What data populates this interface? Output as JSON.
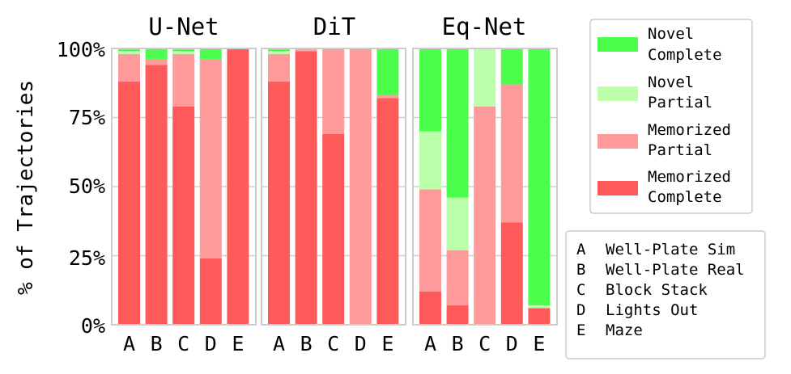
{
  "chart_data": {
    "type": "bar",
    "stacked": true,
    "ylabel": "% of Trajectories",
    "ylim": [
      0,
      100
    ],
    "yticks": [
      {
        "value": 0,
        "label": "0%"
      },
      {
        "value": 25,
        "label": "25%"
      },
      {
        "value": 50,
        "label": "50%"
      },
      {
        "value": 75,
        "label": "75%"
      },
      {
        "value": 100,
        "label": "100%"
      }
    ],
    "categories": [
      "A",
      "B",
      "C",
      "D",
      "E"
    ],
    "series_order": [
      "memorized_complete",
      "memorized_partial",
      "novel_partial",
      "novel_complete"
    ],
    "series": [
      {
        "key": "memorized_complete",
        "name": "Memorized Complete",
        "name_lines": [
          "Memorized",
          "Complete"
        ],
        "color": "#ff5a5a"
      },
      {
        "key": "memorized_partial",
        "name": "Memorized Partial",
        "name_lines": [
          "Memorized",
          "Partial"
        ],
        "color": "#ff9a9a"
      },
      {
        "key": "novel_partial",
        "name": "Novel Partial",
        "name_lines": [
          "Novel",
          "Partial"
        ],
        "color": "#bbffaa"
      },
      {
        "key": "novel_complete",
        "name": "Novel Complete",
        "name_lines": [
          "Novel",
          "Complete"
        ],
        "color": "#4dff4d"
      }
    ],
    "panels": [
      {
        "title": "U-Net",
        "values": {
          "memorized_complete": [
            88,
            94,
            79,
            24,
            100
          ],
          "memorized_partial": [
            10,
            2,
            19,
            72,
            0
          ],
          "novel_partial": [
            1,
            0,
            1,
            0,
            0
          ],
          "novel_complete": [
            1,
            4,
            1,
            4,
            0
          ]
        }
      },
      {
        "title": "DiT",
        "values": {
          "memorized_complete": [
            88,
            99,
            69,
            0,
            82
          ],
          "memorized_partial": [
            10,
            0.5,
            31,
            100,
            1
          ],
          "novel_partial": [
            1,
            0,
            0,
            0,
            0
          ],
          "novel_complete": [
            1,
            0.5,
            0,
            0,
            17
          ]
        }
      },
      {
        "title": "Eq-Net",
        "values": {
          "memorized_complete": [
            12,
            7,
            0,
            37,
            6
          ],
          "memorized_partial": [
            37,
            20,
            79,
            50,
            0
          ],
          "novel_partial": [
            21,
            19,
            21,
            0,
            1
          ],
          "novel_complete": [
            30,
            54,
            0,
            13,
            93
          ]
        }
      }
    ],
    "task_legend": [
      {
        "letter": "A",
        "name": "Well-Plate Sim"
      },
      {
        "letter": "B",
        "name": "Well-Plate Real"
      },
      {
        "letter": "C",
        "name": "Block Stack"
      },
      {
        "letter": "D",
        "name": "Lights Out"
      },
      {
        "letter": "E",
        "name": "Maze"
      }
    ]
  }
}
